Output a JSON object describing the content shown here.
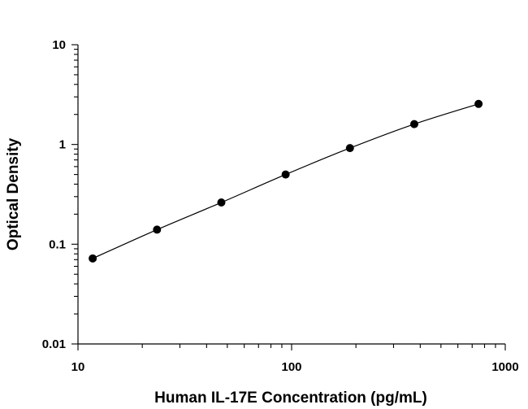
{
  "chart_data": {
    "type": "scatter",
    "title": "",
    "xlabel": "Human IL-17E Concentration (pg/mL)",
    "ylabel": "Optical Density",
    "xscale": "log",
    "yscale": "log",
    "xlim": [
      10,
      1000
    ],
    "ylim": [
      0.01,
      10
    ],
    "x_ticks": [
      "10",
      "100",
      "1000"
    ],
    "y_ticks": [
      "0.01",
      "0.1",
      "1",
      "10"
    ],
    "grid": false,
    "legend": "none",
    "fit_line": "smooth curve through standards",
    "series": [
      {
        "x": [
          11.72,
          23.44,
          46.88,
          93.75,
          187.5,
          375,
          750
        ],
        "y": [
          0.072,
          0.14,
          0.262,
          0.5,
          0.92,
          1.6,
          2.55
        ]
      }
    ]
  }
}
